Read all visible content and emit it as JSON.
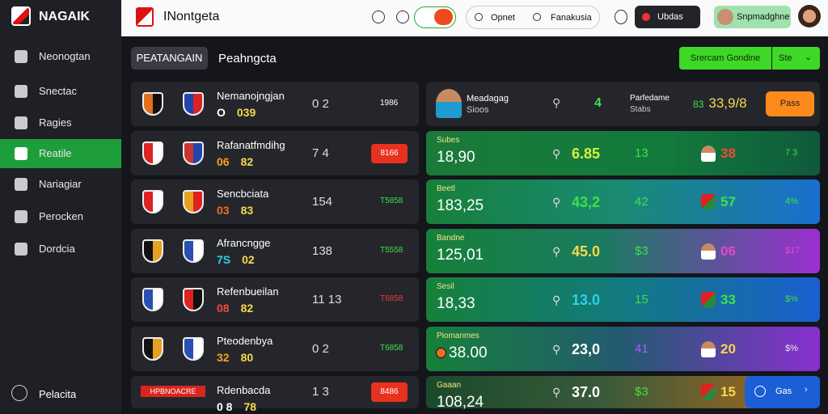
{
  "sidebar": {
    "brand": "NAGAIK",
    "items": [
      "Neonogtan",
      "Snectac",
      "Ragies",
      "Reatile",
      "Nariagiar",
      "Perocken",
      "Dordcia"
    ],
    "active": 3,
    "footer": "Pelacita"
  },
  "header": {
    "brand": "INontgeta",
    "pill_left": "Opnet",
    "pill_right": "Fanakusia",
    "button": "Ubdas",
    "user": "Snpmadghne"
  },
  "tabs": [
    "PEATANGAIN",
    "Peahngcta"
  ],
  "actions": {
    "primary": "Srercam Gondine",
    "secondary": "Ste"
  },
  "matches": [
    {
      "title": "Nemanojngjan",
      "score_a": "O",
      "score_b": "039",
      "mid": "0 2",
      "right": "1986"
    },
    {
      "title": "Rafanatfmdihg",
      "score_a": "06",
      "score_b": "82",
      "mid": "7 4",
      "right": "8166"
    },
    {
      "title": "Sencbciata",
      "score_a": "03",
      "score_b": "83",
      "mid": "154",
      "right": "T5858"
    },
    {
      "title": "Afrancngge",
      "score_a": "7S",
      "score_b": "02",
      "mid": "138",
      "right": "T5558"
    },
    {
      "title": "Refenbueilan",
      "score_a": "08",
      "score_b": "82",
      "mid": "11 13",
      "right": "T6858"
    },
    {
      "title": "Pteodenbya",
      "score_a": "32",
      "score_b": "80",
      "mid": "0 2",
      "right": "T6858"
    },
    {
      "title": "Rdenbacda",
      "score_a": "0 8",
      "score_b": "78",
      "mid": "1 3",
      "right": "8486",
      "banner": "HPBNOACRE"
    }
  ],
  "featured": {
    "name": "Meadagag",
    "sub": "Sioos",
    "a": "4",
    "name2": "Parfedame",
    "sub2": "Stabs",
    "value_a": "83",
    "value_b": "33,9/8",
    "button": "Pass"
  },
  "odds": [
    {
      "label": "Subes",
      "value": "18,90",
      "a": "6.85",
      "b": "13",
      "c": "38",
      "d": "7 3"
    },
    {
      "label": "Beetl",
      "value": "183,25",
      "a": "43,2",
      "b": "42",
      "c": "57",
      "d": "4%"
    },
    {
      "label": "Bandne",
      "value": "125,01",
      "a": "45.0",
      "b": "$3",
      "c": "06",
      "d": "$17"
    },
    {
      "label": "Sesil",
      "value": "18,33",
      "a": "13.0",
      "b": "15",
      "c": "33",
      "d": "$%"
    },
    {
      "label": "Piomanmes",
      "value": "38.00",
      "a": "23,0",
      "b": "41",
      "c": "20",
      "d": "$%"
    },
    {
      "label": "Gaaan",
      "value": "108,24",
      "a": "37.0",
      "b": "$3",
      "c": "15",
      "d": "Gas"
    }
  ]
}
